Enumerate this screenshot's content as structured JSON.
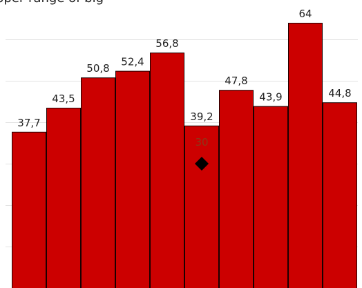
{
  "caption": "pper range of big",
  "colors": {
    "bar_fill": "#cc0000",
    "bar_stroke": "#1a0000",
    "grid": "#e2e2e2",
    "marker": "#000000",
    "label_text": "#222222",
    "marker_label_text": "#8a3a1a"
  },
  "chart_data": {
    "type": "bar",
    "title": "",
    "xlabel": "",
    "ylabel": "",
    "categories": [
      "",
      "",
      "",
      "",
      "",
      "",
      "",
      "",
      "",
      ""
    ],
    "values": [
      37.7,
      43.5,
      50.8,
      52.4,
      56.8,
      39.2,
      47.8,
      43.9,
      64,
      44.8
    ],
    "data_labels": [
      "37,7",
      "43,5",
      "50,8",
      "52,4",
      "56,8",
      "39,2",
      "47,8",
      "43,9",
      "64",
      "44,8"
    ],
    "markers": [
      {
        "index": 5,
        "value": 30,
        "label": "30",
        "shape": "diamond"
      }
    ],
    "ylim": [
      0,
      69.5
    ],
    "grid": true,
    "gridlines": [
      10,
      20,
      30,
      40,
      50,
      60
    ]
  }
}
